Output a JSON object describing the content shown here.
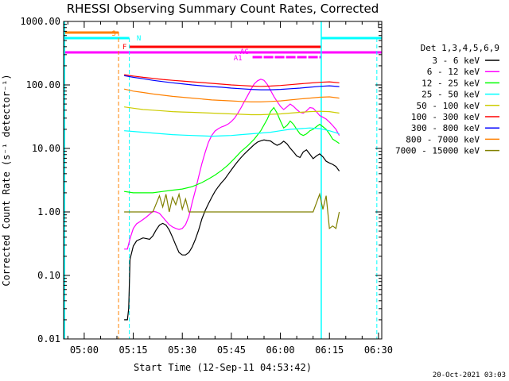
{
  "chart_data": {
    "type": "line",
    "title": "RHESSI Observing Summary Count Rates, Corrected",
    "xlabel": "Start Time (12-Sep-11 04:53:42)",
    "ylabel": "Corrected Count Rate (s⁻¹ detector⁻¹)",
    "yscale": "log",
    "ylim": [
      0.01,
      1000
    ],
    "xlim_minutes": [
      293.7,
      391
    ],
    "x_unit": "minutes since 00:00 UT",
    "x_ticks": [
      {
        "label": "05:00",
        "value": 300
      },
      {
        "label": "05:15",
        "value": 315
      },
      {
        "label": "05:30",
        "value": 330
      },
      {
        "label": "05:45",
        "value": 345
      },
      {
        "label": "06:00",
        "value": 360
      },
      {
        "label": "06:15",
        "value": 375
      },
      {
        "label": "06:30",
        "value": 390
      }
    ],
    "y_ticks": [
      {
        "label": "1000.00",
        "value": 1000
      },
      {
        "label": "100.00",
        "value": 100
      },
      {
        "label": "10.00",
        "value": 10
      },
      {
        "label": "1.00",
        "value": 1
      },
      {
        "label": "0.10",
        "value": 0.1
      },
      {
        "label": "0.01",
        "value": 0.01
      }
    ],
    "legend_title": "Det 1,3,4,5,6,9",
    "series": [
      {
        "name": "3 - 6 keV",
        "color": "#000000",
        "x": [
          312.2,
          312.8,
          313.2,
          313.6,
          314,
          315,
          316,
          317,
          318,
          319,
          320,
          321,
          322,
          323,
          324,
          325,
          326,
          327,
          328,
          329,
          330,
          331,
          332,
          333,
          334,
          335,
          336,
          337,
          338,
          339,
          340,
          341,
          342,
          343,
          344,
          345,
          346,
          347,
          348,
          349,
          350,
          351,
          352,
          353,
          354,
          355,
          356,
          357,
          358,
          359,
          360,
          361,
          362,
          363,
          364,
          365,
          366,
          367,
          368,
          369,
          370,
          371,
          372,
          373,
          374,
          375,
          376,
          377,
          378
        ],
        "y": [
          0.02,
          0.02,
          0.02,
          0.03,
          0.18,
          0.29,
          0.35,
          0.37,
          0.39,
          0.38,
          0.37,
          0.42,
          0.52,
          0.62,
          0.66,
          0.62,
          0.52,
          0.4,
          0.3,
          0.23,
          0.21,
          0.21,
          0.23,
          0.28,
          0.37,
          0.52,
          0.78,
          1.05,
          1.35,
          1.7,
          2.1,
          2.5,
          2.9,
          3.3,
          3.9,
          4.6,
          5.4,
          6.3,
          7.2,
          8.2,
          9.2,
          10.3,
          11.5,
          12.6,
          13.2,
          13.6,
          13.3,
          13.1,
          12.0,
          11.2,
          11.8,
          13.0,
          11.8,
          10.1,
          8.8,
          7.6,
          7.2,
          8.8,
          9.5,
          8.1,
          6.9,
          7.6,
          8.2,
          7.4,
          6.3,
          5.9,
          5.6,
          5.2,
          4.4
        ]
      },
      {
        "name": "6 - 12 keV",
        "color": "#ff00ff",
        "x": [
          312.2,
          313.2,
          314,
          315,
          316,
          317,
          318,
          319,
          320,
          321,
          322,
          323,
          324,
          325,
          326,
          327,
          328,
          329,
          330,
          331,
          332,
          333,
          334,
          335,
          336,
          337,
          338,
          339,
          340,
          341,
          342,
          343,
          344,
          345,
          346,
          347,
          348,
          349,
          350,
          351,
          352,
          353,
          354,
          355,
          356,
          357,
          358,
          359,
          360,
          361,
          362,
          363,
          364,
          365,
          366,
          367,
          368,
          369,
          370,
          371,
          372,
          373,
          374,
          375,
          376,
          377,
          378
        ],
        "y": [
          0.26,
          0.26,
          0.38,
          0.55,
          0.65,
          0.7,
          0.76,
          0.83,
          0.92,
          1.02,
          1.0,
          0.95,
          0.83,
          0.72,
          0.63,
          0.58,
          0.55,
          0.53,
          0.55,
          0.63,
          0.85,
          1.4,
          2.2,
          3.6,
          5.8,
          8.7,
          12.5,
          16.0,
          18.8,
          20.5,
          21.8,
          22.8,
          24.2,
          26.5,
          30.0,
          36.0,
          44.0,
          55.0,
          68.0,
          85.0,
          104.0,
          116.0,
          123.0,
          118.0,
          102.0,
          82.0,
          66.0,
          55.0,
          46.0,
          41.0,
          45.0,
          50.0,
          46.0,
          41.0,
          37.0,
          36.0,
          39.0,
          44.0,
          43.0,
          38.0,
          33.0,
          31.0,
          29.0,
          26.0,
          23.0,
          20.0,
          16.0
        ]
      },
      {
        "name": "12 - 25 keV",
        "color": "#00ff00",
        "x": [
          312.2,
          315,
          318,
          321,
          324,
          327,
          330,
          333,
          336,
          338,
          340,
          342,
          344,
          346,
          348,
          350,
          352,
          354,
          356,
          357,
          358,
          359,
          360,
          361,
          362,
          363,
          364,
          365,
          366,
          367,
          368,
          369,
          370,
          371,
          372,
          373,
          374,
          375,
          376,
          377,
          378
        ],
        "y": [
          2.1,
          2.0,
          2.0,
          2.0,
          2.1,
          2.2,
          2.3,
          2.5,
          2.9,
          3.3,
          3.8,
          4.5,
          5.5,
          7.0,
          9.0,
          11.0,
          14.0,
          19.0,
          29.0,
          38.0,
          44.0,
          36.0,
          27.0,
          21.0,
          23.0,
          27.0,
          24.0,
          20.0,
          17.0,
          16.0,
          17.0,
          19.0,
          20.0,
          22.0,
          24.0,
          22.0,
          20.0,
          17.0,
          14.0,
          13.0,
          12.0
        ]
      },
      {
        "name": "25 - 50 keV",
        "color": "#00ffff",
        "x": [
          312.2,
          315,
          318,
          321,
          324,
          327,
          330,
          333,
          336,
          339,
          342,
          345,
          348,
          351,
          354,
          357,
          360,
          363,
          366,
          369,
          372,
          375,
          378
        ],
        "y": [
          19.0,
          18.5,
          18.0,
          17.5,
          17.0,
          16.5,
          16.2,
          16.0,
          15.8,
          15.6,
          15.8,
          16.0,
          16.5,
          17.0,
          17.5,
          18.0,
          19.0,
          20.0,
          20.5,
          21.0,
          20.5,
          19.0,
          17.0
        ]
      },
      {
        "name": "50 - 100 keV",
        "color": "#cccc00",
        "x": [
          312.2,
          315,
          318,
          321,
          324,
          327,
          330,
          333,
          336,
          339,
          342,
          345,
          348,
          351,
          354,
          357,
          360,
          363,
          366,
          369,
          372,
          375,
          378
        ],
        "y": [
          45.0,
          43.0,
          41.0,
          40.0,
          39.0,
          38.0,
          37.5,
          37.0,
          36.5,
          36.0,
          35.5,
          35.0,
          34.5,
          34.0,
          34.0,
          34.5,
          35.0,
          36.0,
          37.0,
          38.0,
          38.5,
          38.0,
          36.0
        ]
      },
      {
        "name": "100 - 300 keV",
        "color": "#ff0000",
        "x": [
          312.2,
          315,
          318,
          321,
          324,
          327,
          330,
          333,
          336,
          339,
          342,
          345,
          348,
          351,
          354,
          357,
          360,
          363,
          366,
          369,
          372,
          375,
          378
        ],
        "y": [
          145.0,
          138.0,
          132.0,
          127.0,
          122.0,
          118.0,
          115.0,
          112.0,
          109.0,
          106.0,
          103.0,
          100.0,
          98.0,
          96.0,
          95.0,
          96.0,
          98.0,
          101.0,
          104.0,
          107.0,
          110.0,
          112.0,
          108.0
        ]
      },
      {
        "name": "300 - 800 keV",
        "color": "#0000ff",
        "x": [
          312.2,
          315,
          318,
          321,
          324,
          327,
          330,
          333,
          336,
          339,
          342,
          345,
          348,
          351,
          354,
          357,
          360,
          363,
          366,
          369,
          372,
          375,
          378
        ],
        "y": [
          140.0,
          132.0,
          125.0,
          118.0,
          113.0,
          108.0,
          104.0,
          100.0,
          97.0,
          94.0,
          92.0,
          89.0,
          87.0,
          85.0,
          84.0,
          84.0,
          85.0,
          87.0,
          89.0,
          92.0,
          95.0,
          97.0,
          94.0
        ]
      },
      {
        "name": "800 - 7000 keV",
        "color": "#ff8000",
        "x": [
          312.2,
          315,
          318,
          321,
          324,
          327,
          330,
          333,
          336,
          339,
          342,
          345,
          348,
          351,
          354,
          357,
          360,
          363,
          366,
          369,
          372,
          375,
          378
        ],
        "y": [
          86.0,
          80.0,
          76.0,
          72.0,
          69.0,
          66.0,
          64.0,
          62.0,
          60.0,
          58.0,
          57.0,
          56.0,
          55.0,
          54.0,
          54.0,
          55.0,
          56.0,
          58.0,
          60.0,
          62.0,
          64.0,
          65.0,
          62.0
        ]
      },
      {
        "name": "7000 - 15000 keV",
        "color": "#808000",
        "x": [
          312.2,
          315,
          318,
          321,
          323,
          324,
          325,
          326,
          327,
          328,
          329,
          330,
          331,
          332,
          333,
          340,
          345,
          350,
          355,
          360,
          365,
          370,
          372,
          373,
          374,
          375,
          376,
          377,
          378
        ],
        "y": [
          1.0,
          1.0,
          1.0,
          1.0,
          1.8,
          1.2,
          1.9,
          1.0,
          1.7,
          1.3,
          1.9,
          1.1,
          1.6,
          1.0,
          1.0,
          1.0,
          1.0,
          1.0,
          1.0,
          1.0,
          1.0,
          1.0,
          1.9,
          1.1,
          1.8,
          0.55,
          0.6,
          0.55,
          1.0
        ]
      }
    ],
    "time_markers": {
      "S_dashed_orange": 310.5,
      "N_dashed_cyan": 313.8,
      "solid_cyan": [
        294,
        372.5
      ],
      "dashed_cyan_right": 389.5
    },
    "flag_bars": [
      {
        "label": "S",
        "color": "#ff8000",
        "x": [
          294,
          310.5
        ]
      },
      {
        "label": "N",
        "color": "#00ffff",
        "x": [
          294,
          313.8
        ]
      },
      {
        "label": "N",
        "color": "#00ffff",
        "x": [
          372.5,
          391
        ]
      },
      {
        "label": "F",
        "color": "#ff0000",
        "x": [
          313.8,
          372.5
        ]
      },
      {
        "label": "AG",
        "color": "#ff00ff",
        "x": [
          294,
          391
        ]
      },
      {
        "label": "A1",
        "color": "#ff00ff",
        "x": [
          351,
          372.5
        ]
      }
    ],
    "footer_date": "20-Oct-2021 03:03",
    "grid": false,
    "legend_position": "right"
  }
}
